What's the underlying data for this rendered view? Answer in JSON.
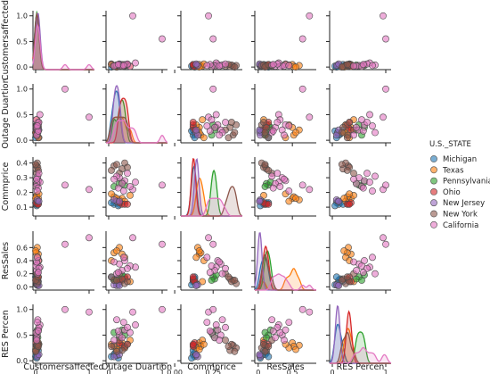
{
  "chart_data": {
    "type": "scatter",
    "variables": [
      "Customersaffected",
      "Outage Duartion",
      "Commprice",
      "ResSales",
      "RES Percen"
    ],
    "diagonal": "kde",
    "axis_ranges": {
      "Customersaffected": [
        -0.05,
        1.1
      ],
      "Outage Duartion": [
        -0.05,
        1.1
      ],
      "Commprice": [
        0.04,
        0.44
      ],
      "ResSales": [
        -0.05,
        0.85
      ],
      "RES Percen": [
        -0.05,
        1.1
      ]
    },
    "x_ticks": [
      {
        "variable": "Customersaffected",
        "ticks": [
          {
            "value": 0,
            "label": "0"
          },
          {
            "value": 1,
            "label": "1"
          }
        ]
      },
      {
        "variable": "Outage Duartion",
        "ticks": [
          {
            "value": 0,
            "label": "0"
          },
          {
            "value": 1,
            "label": "1"
          }
        ]
      },
      {
        "variable": "Commprice",
        "ticks": [
          {
            "value": 0.0,
            "label": "0.00"
          },
          {
            "value": 0.25,
            "label": "0.25"
          }
        ]
      },
      {
        "variable": "ResSales",
        "ticks": [
          {
            "value": 0,
            "label": "0"
          },
          {
            "value": 0.5,
            "label": "0.5"
          }
        ]
      },
      {
        "variable": "RES Percen",
        "ticks": [
          {
            "value": 0,
            "label": "0"
          },
          {
            "value": 1,
            "label": "1"
          }
        ]
      }
    ],
    "y_ticks": [
      {
        "variable": "Customersaffected",
        "ticks": [
          {
            "value": 0,
            "label": "0.0"
          },
          {
            "value": 0.5,
            "label": "0.5"
          },
          {
            "value": 1,
            "label": "1.0"
          }
        ]
      },
      {
        "variable": "Outage Duartion",
        "ticks": [
          {
            "value": 0,
            "label": "0.0"
          },
          {
            "value": 0.5,
            "label": "0.5"
          },
          {
            "value": 1,
            "label": "1.0"
          }
        ]
      },
      {
        "variable": "Commprice",
        "ticks": [
          {
            "value": 0.1,
            "label": "0.1"
          },
          {
            "value": 0.2,
            "label": "0.2"
          },
          {
            "value": 0.3,
            "label": "0.3"
          },
          {
            "value": 0.4,
            "label": "0.4"
          }
        ]
      },
      {
        "variable": "ResSales",
        "ticks": [
          {
            "value": 0,
            "label": "0.0"
          },
          {
            "value": 0.2,
            "label": "0.2"
          },
          {
            "value": 0.4,
            "label": "0.4"
          },
          {
            "value": 0.6,
            "label": "0.6"
          }
        ]
      },
      {
        "variable": "RES Percen",
        "ticks": [
          {
            "value": 0,
            "label": "0.0"
          },
          {
            "value": 0.5,
            "label": "0.5"
          },
          {
            "value": 1,
            "label": "1.0"
          }
        ]
      }
    ],
    "legend": {
      "title": "U.S._STATE",
      "placement": "right"
    },
    "series": [
      {
        "name": "Michigan",
        "color": "#1f77b4",
        "points": [
          [
            0.02,
            0.12,
            0.13,
            0.12,
            0.15
          ],
          [
            0.01,
            0.1,
            0.12,
            0.1,
            0.12
          ],
          [
            0.03,
            0.15,
            0.14,
            0.05,
            0.1
          ],
          [
            0.05,
            0.2,
            0.12,
            0.08,
            0.2
          ],
          [
            0.0,
            0.05,
            0.13,
            0.15,
            0.08
          ],
          [
            0.02,
            0.18,
            0.11,
            0.03,
            0.05
          ]
        ]
      },
      {
        "name": "Texas",
        "color": "#ff7f0e",
        "points": [
          [
            0.03,
            0.2,
            0.15,
            0.6,
            0.3
          ],
          [
            0.05,
            0.25,
            0.16,
            0.5,
            0.35
          ],
          [
            0.01,
            0.1,
            0.17,
            0.52,
            0.28
          ],
          [
            0.04,
            0.3,
            0.14,
            0.45,
            0.25
          ],
          [
            0.02,
            0.4,
            0.18,
            0.08,
            0.4
          ],
          [
            0.06,
            0.05,
            0.19,
            0.4,
            0.32
          ],
          [
            0.0,
            0.15,
            0.16,
            0.55,
            0.22
          ]
        ]
      },
      {
        "name": "Pennsylvania",
        "color": "#2ca02c",
        "points": [
          [
            0.02,
            0.3,
            0.25,
            0.15,
            0.5
          ],
          [
            0.04,
            0.2,
            0.26,
            0.12,
            0.45
          ],
          [
            0.01,
            0.1,
            0.24,
            0.1,
            0.55
          ],
          [
            0.03,
            0.25,
            0.27,
            0.18,
            0.6
          ]
        ]
      },
      {
        "name": "Ohio",
        "color": "#d62728",
        "points": [
          [
            0.02,
            0.25,
            0.12,
            0.1,
            0.3
          ],
          [
            0.03,
            0.3,
            0.12,
            0.12,
            0.28
          ],
          [
            0.01,
            0.2,
            0.13,
            0.08,
            0.35
          ],
          [
            0.05,
            0.35,
            0.12,
            0.15,
            0.32
          ]
        ]
      },
      {
        "name": "New Jersey",
        "color": "#9467bd",
        "points": [
          [
            0.04,
            0.15,
            0.14,
            0.02,
            0.1
          ],
          [
            0.03,
            0.1,
            0.15,
            0.03,
            0.08
          ],
          [
            0.06,
            0.2,
            0.14,
            0.02,
            0.12
          ]
        ]
      },
      {
        "name": "New York",
        "color": "#8c564b",
        "points": [
          [
            0.02,
            0.1,
            0.38,
            0.1,
            0.3
          ],
          [
            0.03,
            0.3,
            0.4,
            0.05,
            0.25
          ],
          [
            0.01,
            0.25,
            0.36,
            0.12,
            0.2
          ],
          [
            0.04,
            0.35,
            0.37,
            0.08,
            0.32
          ],
          [
            0.0,
            0.15,
            0.39,
            0.1,
            0.18
          ],
          [
            0.02,
            0.2,
            0.33,
            0.2,
            0.4
          ],
          [
            0.05,
            0.05,
            0.35,
            0.15,
            0.28
          ]
        ]
      },
      {
        "name": "California",
        "color": "#e377c2",
        "points": [
          [
            1.0,
            0.45,
            0.22,
            0.75,
            0.95
          ],
          [
            0.55,
            1.0,
            0.25,
            0.65,
            1.0
          ],
          [
            0.05,
            0.3,
            0.28,
            0.4,
            0.6
          ],
          [
            0.03,
            0.2,
            0.3,
            0.35,
            0.5
          ],
          [
            0.08,
            0.5,
            0.27,
            0.3,
            0.7
          ],
          [
            0.02,
            0.25,
            0.26,
            0.25,
            0.45
          ],
          [
            0.04,
            0.15,
            0.31,
            0.2,
            0.8
          ],
          [
            0.01,
            0.4,
            0.24,
            0.32,
            0.55
          ],
          [
            0.06,
            0.35,
            0.33,
            0.28,
            0.65
          ],
          [
            0.02,
            0.1,
            0.29,
            0.38,
            0.4
          ],
          [
            0.05,
            0.18,
            0.23,
            0.22,
            0.58
          ],
          [
            0.03,
            0.28,
            0.21,
            0.45,
            0.75
          ]
        ]
      }
    ]
  }
}
